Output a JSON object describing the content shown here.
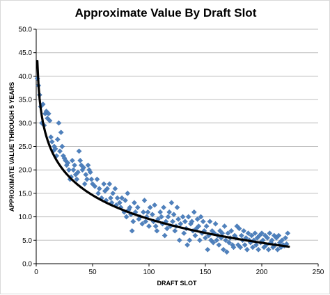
{
  "chart_data": {
    "type": "scatter",
    "title": "Approximate Value By Draft Slot",
    "xlabel": "DRAFT SLOT",
    "ylabel": "APPROXIMATE VALUE THROUGH 5 YEARS",
    "xlim": [
      0,
      250
    ],
    "ylim": [
      0,
      50
    ],
    "x_ticks": [
      "0",
      "50",
      "100",
      "150",
      "200",
      "250"
    ],
    "y_ticks": [
      "0.0",
      "5.0",
      "10.0",
      "15.0",
      "20.0",
      "25.0",
      "30.0",
      "35.0",
      "40.0",
      "45.0",
      "50.0"
    ],
    "grid": "horizontal",
    "marker_color": "#4f81bd",
    "trend_color": "#000000",
    "trendline": {
      "type": "logarithmic",
      "a": 43.24,
      "b": -7.32,
      "x_range": [
        1,
        224
      ]
    },
    "points": [
      [
        1,
        39.5
      ],
      [
        2,
        38
      ],
      [
        3,
        36
      ],
      [
        4,
        33.5
      ],
      [
        5,
        30
      ],
      [
        6,
        34
      ],
      [
        7,
        29.5
      ],
      [
        8,
        32
      ],
      [
        9,
        32.5
      ],
      [
        10,
        31
      ],
      [
        11,
        32
      ],
      [
        12,
        30.5
      ],
      [
        13,
        27
      ],
      [
        14,
        26
      ],
      [
        15,
        24
      ],
      [
        16,
        25
      ],
      [
        17,
        24.5
      ],
      [
        18,
        23
      ],
      [
        19,
        26.5
      ],
      [
        20,
        30
      ],
      [
        21,
        24
      ],
      [
        22,
        28
      ],
      [
        23,
        25
      ],
      [
        24,
        23
      ],
      [
        25,
        22.5
      ],
      [
        26,
        22
      ],
      [
        27,
        21
      ],
      [
        28,
        21.5
      ],
      [
        29,
        20
      ],
      [
        30,
        18
      ],
      [
        31,
        18.5
      ],
      [
        32,
        22
      ],
      [
        33,
        20
      ],
      [
        34,
        21
      ],
      [
        35,
        19
      ],
      [
        36,
        18
      ],
      [
        37,
        19.5
      ],
      [
        38,
        24
      ],
      [
        39,
        22
      ],
      [
        40,
        21
      ],
      [
        41,
        20
      ],
      [
        42,
        20.5
      ],
      [
        43,
        17
      ],
      [
        44,
        19
      ],
      [
        45,
        18
      ],
      [
        46,
        21
      ],
      [
        47,
        20
      ],
      [
        48,
        19.5
      ],
      [
        49,
        18
      ],
      [
        50,
        17
      ],
      [
        52,
        16.5
      ],
      [
        54,
        18
      ],
      [
        55,
        15
      ],
      [
        56,
        16
      ],
      [
        58,
        14
      ],
      [
        60,
        17
      ],
      [
        61,
        15.5
      ],
      [
        62,
        13.5
      ],
      [
        63,
        16
      ],
      [
        65,
        17
      ],
      [
        66,
        14
      ],
      [
        67,
        13
      ],
      [
        68,
        15
      ],
      [
        70,
        16
      ],
      [
        71,
        12.5
      ],
      [
        72,
        14
      ],
      [
        74,
        13
      ],
      [
        75,
        12
      ],
      [
        76,
        14
      ],
      [
        78,
        11
      ],
      [
        79,
        13.5
      ],
      [
        80,
        10
      ],
      [
        81,
        15
      ],
      [
        82,
        11.5
      ],
      [
        83,
        12
      ],
      [
        84,
        10.5
      ],
      [
        85,
        7
      ],
      [
        86,
        9
      ],
      [
        87,
        13
      ],
      [
        88,
        11
      ],
      [
        90,
        12
      ],
      [
        91,
        9.5
      ],
      [
        92,
        10
      ],
      [
        94,
        8.5
      ],
      [
        95,
        11
      ],
      [
        96,
        13.5
      ],
      [
        97,
        9
      ],
      [
        98,
        10
      ],
      [
        99,
        11
      ],
      [
        100,
        8
      ],
      [
        101,
        12
      ],
      [
        103,
        10.5
      ],
      [
        104,
        9
      ],
      [
        105,
        12.5
      ],
      [
        106,
        8
      ],
      [
        107,
        7
      ],
      [
        108,
        9.5
      ],
      [
        110,
        11
      ],
      [
        111,
        10
      ],
      [
        112,
        8.5
      ],
      [
        113,
        12
      ],
      [
        114,
        6
      ],
      [
        115,
        9
      ],
      [
        116,
        7.5
      ],
      [
        117,
        10
      ],
      [
        118,
        11
      ],
      [
        119,
        8
      ],
      [
        120,
        13
      ],
      [
        121,
        9
      ],
      [
        122,
        10.5
      ],
      [
        123,
        7
      ],
      [
        124,
        8
      ],
      [
        125,
        12
      ],
      [
        126,
        9.5
      ],
      [
        127,
        5
      ],
      [
        128,
        8.5
      ],
      [
        130,
        10
      ],
      [
        131,
        6.5
      ],
      [
        132,
        9
      ],
      [
        133,
        7.5
      ],
      [
        134,
        4
      ],
      [
        135,
        10
      ],
      [
        136,
        5
      ],
      [
        137,
        8.5
      ],
      [
        138,
        9
      ],
      [
        139,
        7
      ],
      [
        140,
        11
      ],
      [
        141,
        6
      ],
      [
        142,
        7.5
      ],
      [
        143,
        9.5
      ],
      [
        144,
        8
      ],
      [
        145,
        5
      ],
      [
        146,
        10
      ],
      [
        147,
        6.5
      ],
      [
        148,
        9
      ],
      [
        149,
        7
      ],
      [
        150,
        5.5
      ],
      [
        151,
        8
      ],
      [
        152,
        3
      ],
      [
        153,
        6
      ],
      [
        154,
        9
      ],
      [
        155,
        5
      ],
      [
        156,
        7
      ],
      [
        157,
        4.5
      ],
      [
        158,
        6.5
      ],
      [
        159,
        8.5
      ],
      [
        160,
        5
      ],
      [
        161,
        6
      ],
      [
        162,
        4
      ],
      [
        163,
        7
      ],
      [
        164,
        5.5
      ],
      [
        165,
        6.5
      ],
      [
        166,
        3
      ],
      [
        167,
        8
      ],
      [
        168,
        5
      ],
      [
        169,
        2.5
      ],
      [
        170,
        6.5
      ],
      [
        171,
        4.5
      ],
      [
        172,
        5.5
      ],
      [
        173,
        7
      ],
      [
        174,
        4
      ],
      [
        175,
        3.5
      ],
      [
        176,
        6
      ],
      [
        177,
        5.5
      ],
      [
        178,
        8
      ],
      [
        179,
        4
      ],
      [
        180,
        7.5
      ],
      [
        181,
        3.5
      ],
      [
        182,
        6
      ],
      [
        183,
        5
      ],
      [
        184,
        7
      ],
      [
        185,
        4
      ],
      [
        186,
        5.5
      ],
      [
        187,
        3
      ],
      [
        188,
        6.5
      ],
      [
        189,
        5
      ],
      [
        190,
        4.5
      ],
      [
        191,
        6
      ],
      [
        192,
        3.5
      ],
      [
        193,
        5
      ],
      [
        194,
        6.5
      ],
      [
        195,
        4
      ],
      [
        196,
        5.5
      ],
      [
        197,
        3
      ],
      [
        198,
        6
      ],
      [
        199,
        4.5
      ],
      [
        200,
        6.5
      ],
      [
        201,
        5
      ],
      [
        202,
        3.5
      ],
      [
        203,
        6
      ],
      [
        204,
        4
      ],
      [
        205,
        5.5
      ],
      [
        206,
        3
      ],
      [
        207,
        6.5
      ],
      [
        208,
        4.5
      ],
      [
        209,
        5
      ],
      [
        210,
        3.5
      ],
      [
        211,
        6
      ],
      [
        212,
        4
      ],
      [
        213,
        5.5
      ],
      [
        214,
        3
      ],
      [
        215,
        6
      ],
      [
        216,
        4.5
      ],
      [
        217,
        3.5
      ],
      [
        218,
        5
      ],
      [
        219,
        4
      ],
      [
        220,
        3.8
      ],
      [
        221,
        5.5
      ],
      [
        222,
        4.2
      ],
      [
        223,
        6.5
      ]
    ]
  }
}
